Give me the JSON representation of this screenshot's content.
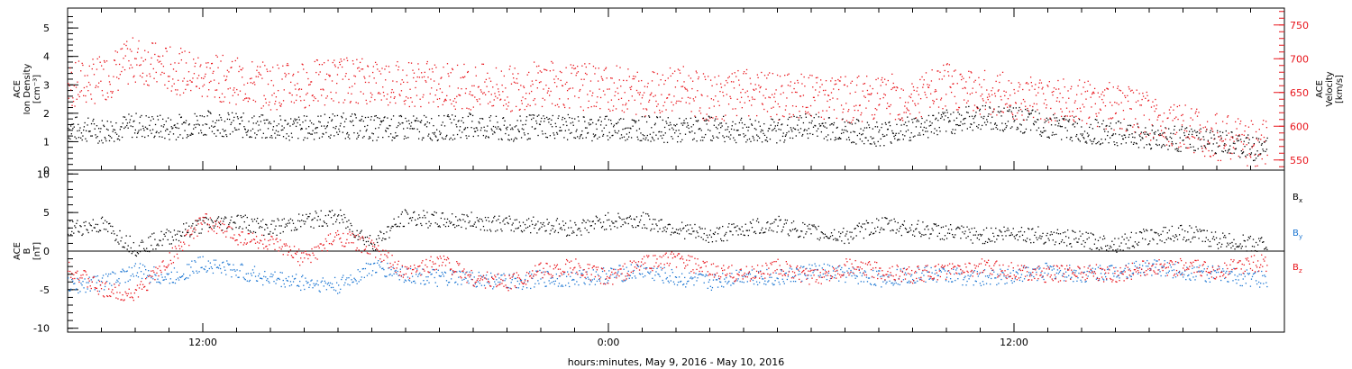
{
  "chart_data": [
    {
      "type": "scatter",
      "panel": "top",
      "xlim_hours": [
        0,
        36
      ],
      "left_axis": {
        "title_lines": [
          "ACE",
          "Ion Density",
          "[cm⁻³]"
        ],
        "ylim": [
          0,
          5.7
        ],
        "ticks": [
          "0",
          "1",
          "2",
          "3",
          "4",
          "5"
        ]
      },
      "right_axis": {
        "title_lines": [
          "ACE",
          "Velocity",
          "[km/s]"
        ],
        "ylim": [
          535,
          775
        ],
        "ticks": [
          "550",
          "600",
          "650",
          "700",
          "750"
        ],
        "color": "#e8141b"
      },
      "series": [
        {
          "axis": "left",
          "color": "#000000",
          "x": [
            0,
            1,
            2,
            3,
            4,
            5,
            6,
            7,
            8,
            9,
            10,
            11,
            12,
            13,
            14,
            15,
            16,
            17,
            18,
            19,
            20,
            21,
            22,
            23,
            24,
            25,
            26,
            27,
            28,
            29,
            30,
            31,
            32,
            33,
            34,
            35
          ],
          "y": [
            1.5,
            1.4,
            1.6,
            1.5,
            1.7,
            1.6,
            1.5,
            1.5,
            1.6,
            1.5,
            1.5,
            1.5,
            1.6,
            1.4,
            1.6,
            1.5,
            1.5,
            1.5,
            1.4,
            1.5,
            1.4,
            1.4,
            1.6,
            1.4,
            1.3,
            1.5,
            1.7,
            1.9,
            1.8,
            1.6,
            1.4,
            1.3,
            1.2,
            1.1,
            1.0,
            0.8
          ]
        },
        {
          "axis": "right",
          "color": "#e8141b",
          "x": [
            0,
            1,
            2,
            3,
            4,
            5,
            6,
            7,
            8,
            9,
            10,
            11,
            12,
            13,
            14,
            15,
            16,
            17,
            18,
            19,
            20,
            21,
            22,
            23,
            24,
            25,
            26,
            27,
            28,
            29,
            30,
            31,
            32,
            33,
            34,
            35
          ],
          "y": [
            660,
            670,
            700,
            685,
            675,
            668,
            660,
            662,
            670,
            668,
            665,
            662,
            660,
            655,
            665,
            660,
            658,
            650,
            660,
            640,
            650,
            645,
            645,
            640,
            645,
            640,
            660,
            650,
            645,
            640,
            635,
            630,
            615,
            600,
            585,
            575
          ]
        }
      ]
    },
    {
      "type": "scatter",
      "panel": "bottom",
      "xlim_hours": [
        0,
        36
      ],
      "left_axis": {
        "title_lines": [
          "ACE",
          "B",
          "[nT]"
        ],
        "ylim": [
          -10.5,
          10.5
        ],
        "ticks": [
          "-10",
          "-5",
          "0",
          "5",
          "10"
        ]
      },
      "x_tick_labels": [
        "12:00",
        "0:00",
        "12:00"
      ],
      "x_tick_hours": [
        4,
        16,
        28
      ],
      "xlabel": "hours:minutes, May  9, 2016 - May 10, 2016",
      "series": [
        {
          "name": "Bx",
          "color": "#000000",
          "x": [
            0,
            1,
            2,
            3,
            4,
            5,
            6,
            7,
            8,
            9,
            10,
            11,
            12,
            13,
            14,
            15,
            16,
            17,
            18,
            19,
            20,
            21,
            22,
            23,
            24,
            25,
            26,
            27,
            28,
            29,
            30,
            31,
            32,
            33,
            34,
            35
          ],
          "y": [
            3.0,
            3.5,
            0.5,
            2.0,
            3.5,
            4.0,
            3.0,
            4.0,
            4.5,
            1.0,
            4.5,
            4.0,
            4.0,
            3.5,
            3.5,
            3.0,
            4.0,
            4.0,
            3.0,
            2.0,
            3.0,
            3.5,
            2.5,
            2.0,
            3.5,
            3.0,
            2.5,
            2.0,
            2.5,
            2.0,
            1.5,
            1.0,
            2.0,
            2.5,
            1.5,
            1.0
          ]
        },
        {
          "name": "By",
          "color": "#1a75d2",
          "x": [
            0,
            1,
            2,
            3,
            4,
            5,
            6,
            7,
            8,
            9,
            10,
            11,
            12,
            13,
            14,
            15,
            16,
            17,
            18,
            19,
            20,
            21,
            22,
            23,
            24,
            25,
            26,
            27,
            28,
            29,
            30,
            31,
            32,
            33,
            34,
            35
          ],
          "y": [
            -4.5,
            -4.0,
            -2.5,
            -3.5,
            -1.5,
            -2.5,
            -3.5,
            -4.0,
            -4.5,
            -2.0,
            -3.0,
            -3.5,
            -3.5,
            -4.0,
            -3.5,
            -3.5,
            -3.0,
            -2.5,
            -3.5,
            -4.0,
            -3.0,
            -3.5,
            -2.5,
            -3.0,
            -3.5,
            -3.0,
            -3.0,
            -3.5,
            -3.0,
            -2.5,
            -3.0,
            -2.5,
            -2.0,
            -2.5,
            -3.0,
            -3.5
          ]
        },
        {
          "name": "Bz",
          "color": "#e8141b",
          "x": [
            0,
            1,
            2,
            3,
            4,
            5,
            6,
            7,
            8,
            9,
            10,
            11,
            12,
            13,
            14,
            15,
            16,
            17,
            18,
            19,
            20,
            21,
            22,
            23,
            24,
            25,
            26,
            27,
            28,
            29,
            30,
            31,
            32,
            33,
            34,
            35
          ],
          "y": [
            -2.0,
            -5.0,
            -5.5,
            -1.0,
            4.0,
            2.0,
            1.0,
            -1.0,
            2.0,
            0.5,
            -3.0,
            -1.0,
            -3.5,
            -4.0,
            -2.5,
            -2.0,
            -3.5,
            -1.5,
            -1.0,
            -2.5,
            -3.0,
            -2.0,
            -3.5,
            -2.0,
            -2.5,
            -3.0,
            -2.5,
            -2.0,
            -2.5,
            -3.0,
            -2.5,
            -3.0,
            -2.0,
            -2.0,
            -2.5,
            -1.5
          ]
        }
      ],
      "legend_labels": [
        {
          "base": "B",
          "sub": "x",
          "color": "#000000"
        },
        {
          "base": "B",
          "sub": "y",
          "color": "#1a75d2"
        },
        {
          "base": "B",
          "sub": "z",
          "color": "#e8141b"
        }
      ]
    }
  ]
}
